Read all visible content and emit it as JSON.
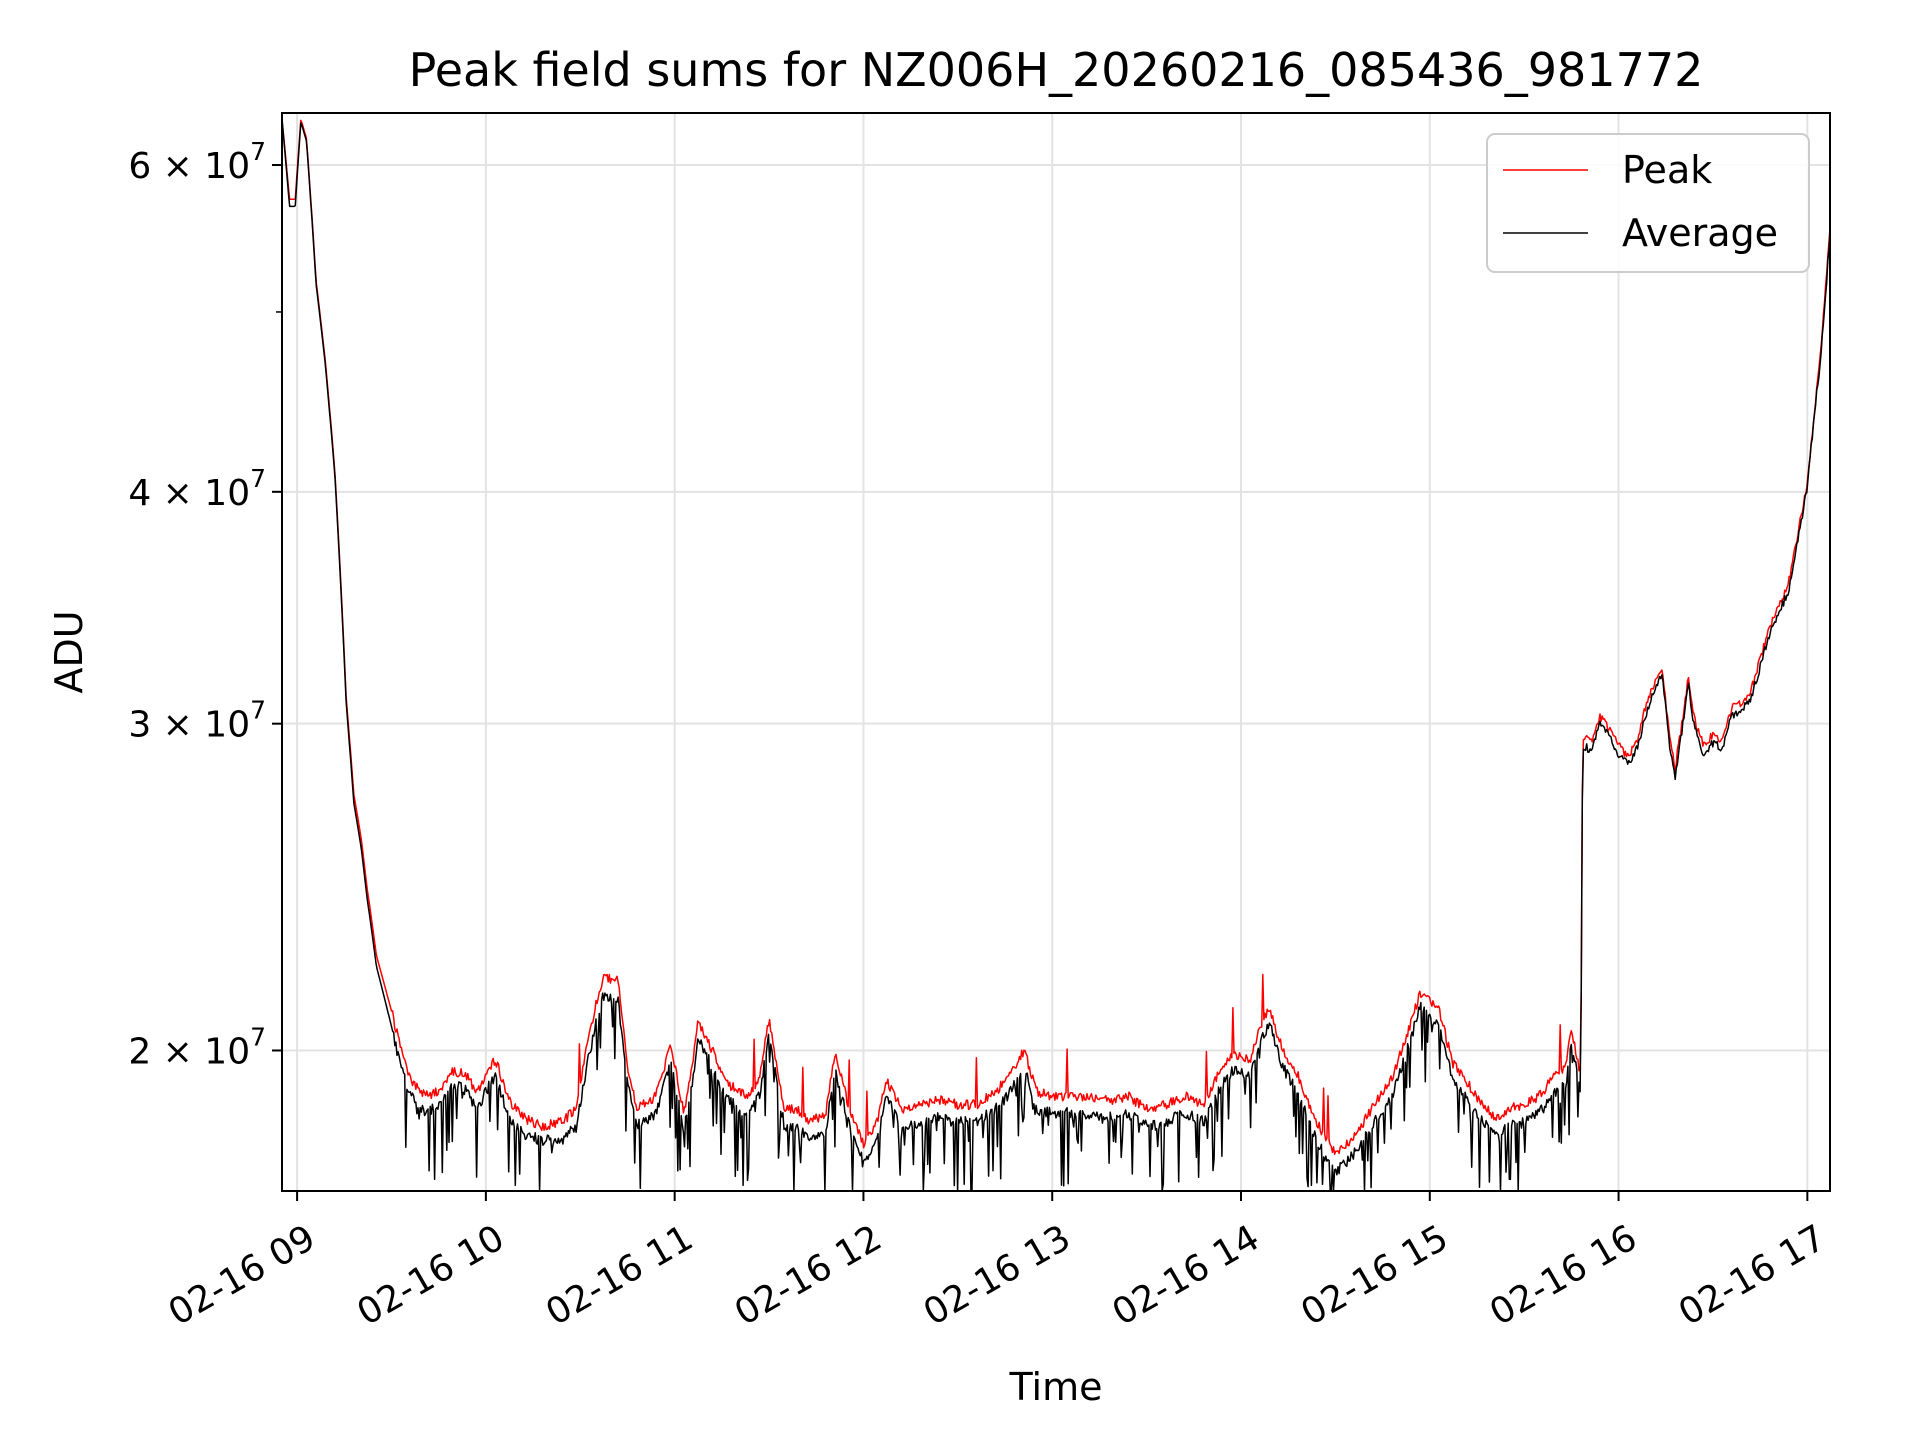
{
  "chart_data": {
    "type": "line",
    "title": "Peak field sums for NZ006H_20260216_085436_981772",
    "xlabel": "Time",
    "ylabel": "ADU",
    "yscale": "log",
    "ylim": [
      16800000,
      64000000
    ],
    "xlim_hours": [
      8.92,
      17.12
    ],
    "grid": true,
    "legend_position": "upper-right",
    "x_ticks": [
      {
        "hour": 9,
        "label": "02-16 09"
      },
      {
        "hour": 10,
        "label": "02-16 10"
      },
      {
        "hour": 11,
        "label": "02-16 11"
      },
      {
        "hour": 12,
        "label": "02-16 12"
      },
      {
        "hour": 13,
        "label": "02-16 13"
      },
      {
        "hour": 14,
        "label": "02-16 14"
      },
      {
        "hour": 15,
        "label": "02-16 15"
      },
      {
        "hour": 16,
        "label": "02-16 16"
      },
      {
        "hour": 17,
        "label": "02-16 17"
      }
    ],
    "y_ticks": [
      {
        "value": 20000000,
        "base": "2 × 10",
        "exp": "7"
      },
      {
        "value": 30000000,
        "base": "3 × 10",
        "exp": "7"
      },
      {
        "value": 40000000,
        "base": "4 × 10",
        "exp": "7"
      },
      {
        "value": 60000000,
        "base": "6 × 10",
        "exp": "7"
      }
    ],
    "y_minor_ticks": [
      50000000
    ],
    "series": [
      {
        "name": "Peak",
        "color": "#ff0000",
        "points": [
          [
            8.92,
            63500000
          ],
          [
            8.96,
            57500000
          ],
          [
            8.99,
            57500000
          ],
          [
            9.02,
            63500000
          ],
          [
            9.05,
            62000000
          ],
          [
            9.08,
            56000000
          ],
          [
            9.1,
            52000000
          ],
          [
            9.15,
            47000000
          ],
          [
            9.2,
            41000000
          ],
          [
            9.23,
            36000000
          ],
          [
            9.26,
            31000000
          ],
          [
            9.3,
            27500000
          ],
          [
            9.34,
            26000000
          ],
          [
            9.37,
            24500000
          ],
          [
            9.42,
            22500000
          ],
          [
            9.5,
            21000000
          ],
          [
            9.55,
            20000000
          ],
          [
            9.6,
            19300000
          ],
          [
            9.68,
            18900000
          ],
          [
            9.75,
            19000000
          ],
          [
            9.82,
            19500000
          ],
          [
            9.9,
            19400000
          ],
          [
            9.95,
            19000000
          ],
          [
            10.05,
            19800000
          ],
          [
            10.12,
            18800000
          ],
          [
            10.2,
            18400000
          ],
          [
            10.3,
            18200000
          ],
          [
            10.4,
            18300000
          ],
          [
            10.48,
            18600000
          ],
          [
            10.55,
            20500000
          ],
          [
            10.62,
            21900000
          ],
          [
            10.7,
            21800000
          ],
          [
            10.75,
            19600000
          ],
          [
            10.8,
            18600000
          ],
          [
            10.9,
            18900000
          ],
          [
            10.98,
            20100000
          ],
          [
            11.05,
            18500000
          ],
          [
            11.1,
            19800000
          ],
          [
            11.12,
            20700000
          ],
          [
            11.2,
            20000000
          ],
          [
            11.28,
            19200000
          ],
          [
            11.38,
            18900000
          ],
          [
            11.45,
            19300000
          ],
          [
            11.5,
            20800000
          ],
          [
            11.58,
            18600000
          ],
          [
            11.65,
            18600000
          ],
          [
            11.72,
            18300000
          ],
          [
            11.8,
            18500000
          ],
          [
            11.85,
            19900000
          ],
          [
            11.92,
            18700000
          ],
          [
            12.0,
            17800000
          ],
          [
            12.08,
            18400000
          ],
          [
            12.12,
            19300000
          ],
          [
            12.2,
            18600000
          ],
          [
            12.3,
            18700000
          ],
          [
            12.4,
            18800000
          ],
          [
            12.5,
            18700000
          ],
          [
            12.6,
            18700000
          ],
          [
            12.7,
            19000000
          ],
          [
            12.78,
            19400000
          ],
          [
            12.85,
            20000000
          ],
          [
            12.92,
            19000000
          ],
          [
            13.0,
            18900000
          ],
          [
            13.1,
            18900000
          ],
          [
            13.2,
            18900000
          ],
          [
            13.3,
            18800000
          ],
          [
            13.4,
            18900000
          ],
          [
            13.5,
            18600000
          ],
          [
            13.6,
            18700000
          ],
          [
            13.7,
            18900000
          ],
          [
            13.8,
            18700000
          ],
          [
            13.88,
            19400000
          ],
          [
            13.95,
            19900000
          ],
          [
            14.05,
            19800000
          ],
          [
            14.12,
            20800000
          ],
          [
            14.15,
            21100000
          ],
          [
            14.22,
            20000000
          ],
          [
            14.3,
            19400000
          ],
          [
            14.38,
            18500000
          ],
          [
            14.45,
            17900000
          ],
          [
            14.5,
            17600000
          ],
          [
            14.58,
            17900000
          ],
          [
            14.65,
            18300000
          ],
          [
            14.72,
            18800000
          ],
          [
            14.8,
            19300000
          ],
          [
            14.88,
            20400000
          ],
          [
            14.95,
            21500000
          ],
          [
            15.05,
            21000000
          ],
          [
            15.12,
            19700000
          ],
          [
            15.2,
            19200000
          ],
          [
            15.28,
            18700000
          ],
          [
            15.35,
            18400000
          ],
          [
            15.42,
            18600000
          ],
          [
            15.5,
            18700000
          ],
          [
            15.58,
            18900000
          ],
          [
            15.65,
            19300000
          ],
          [
            15.72,
            19600000
          ],
          [
            15.75,
            20500000
          ],
          [
            15.8,
            19400000
          ],
          [
            15.81,
            29500000
          ],
          [
            15.86,
            29300000
          ],
          [
            15.9,
            30300000
          ],
          [
            15.95,
            29800000
          ],
          [
            16.0,
            29200000
          ],
          [
            16.05,
            28800000
          ],
          [
            16.1,
            29400000
          ],
          [
            16.15,
            30800000
          ],
          [
            16.2,
            31800000
          ],
          [
            16.23,
            32200000
          ],
          [
            16.27,
            29500000
          ],
          [
            16.3,
            28400000
          ],
          [
            16.34,
            30200000
          ],
          [
            16.37,
            31800000
          ],
          [
            16.4,
            30200000
          ],
          [
            16.45,
            29200000
          ],
          [
            16.5,
            29600000
          ],
          [
            16.55,
            29400000
          ],
          [
            16.6,
            30600000
          ],
          [
            16.65,
            30800000
          ],
          [
            16.7,
            31200000
          ],
          [
            16.75,
            32500000
          ],
          [
            16.8,
            33800000
          ],
          [
            16.85,
            34700000
          ],
          [
            16.9,
            35700000
          ],
          [
            16.95,
            38000000
          ],
          [
            17.0,
            40500000
          ],
          [
            17.03,
            43500000
          ],
          [
            17.07,
            47500000
          ],
          [
            17.1,
            52000000
          ],
          [
            17.12,
            55300000
          ]
        ]
      },
      {
        "name": "Average",
        "color": "#000000",
        "points": [
          [
            8.92,
            63500000
          ],
          [
            8.96,
            57000000
          ],
          [
            8.99,
            57000000
          ],
          [
            9.02,
            63300000
          ],
          [
            9.05,
            61800000
          ],
          [
            9.08,
            55800000
          ],
          [
            9.1,
            51800000
          ],
          [
            9.15,
            46800000
          ],
          [
            9.2,
            40800000
          ],
          [
            9.23,
            35800000
          ],
          [
            9.26,
            30800000
          ],
          [
            9.3,
            27200000
          ],
          [
            9.34,
            25700000
          ],
          [
            9.37,
            24200000
          ],
          [
            9.42,
            22200000
          ],
          [
            9.5,
            20600000
          ],
          [
            9.55,
            19600000
          ],
          [
            9.6,
            18900000
          ],
          [
            9.68,
            18500000
          ],
          [
            9.75,
            18700000
          ],
          [
            9.82,
            19200000
          ],
          [
            9.9,
            19000000
          ],
          [
            9.95,
            18600000
          ],
          [
            10.05,
            19400000
          ],
          [
            10.12,
            18400000
          ],
          [
            10.2,
            18000000
          ],
          [
            10.3,
            17900000
          ],
          [
            10.4,
            17900000
          ],
          [
            10.48,
            18200000
          ],
          [
            10.55,
            20000000
          ],
          [
            10.62,
            21400000
          ],
          [
            10.7,
            21300000
          ],
          [
            10.75,
            19200000
          ],
          [
            10.8,
            18200000
          ],
          [
            10.9,
            18500000
          ],
          [
            10.98,
            19700000
          ],
          [
            11.05,
            18100000
          ],
          [
            11.1,
            19400000
          ],
          [
            11.12,
            20300000
          ],
          [
            11.2,
            19600000
          ],
          [
            11.28,
            18800000
          ],
          [
            11.38,
            18500000
          ],
          [
            11.45,
            18900000
          ],
          [
            11.5,
            20400000
          ],
          [
            11.58,
            18200000
          ],
          [
            11.65,
            18200000
          ],
          [
            11.72,
            17900000
          ],
          [
            11.8,
            18100000
          ],
          [
            11.85,
            19500000
          ],
          [
            11.92,
            18300000
          ],
          [
            12.0,
            17400000
          ],
          [
            12.08,
            18000000
          ],
          [
            12.12,
            18900000
          ],
          [
            12.2,
            18200000
          ],
          [
            12.3,
            18300000
          ],
          [
            12.4,
            18400000
          ],
          [
            12.5,
            18300000
          ],
          [
            12.6,
            18300000
          ],
          [
            12.7,
            18600000
          ],
          [
            12.78,
            19000000
          ],
          [
            12.85,
            19600000
          ],
          [
            12.92,
            18600000
          ],
          [
            13.0,
            18500000
          ],
          [
            13.1,
            18500000
          ],
          [
            13.2,
            18500000
          ],
          [
            13.3,
            18400000
          ],
          [
            13.4,
            18500000
          ],
          [
            13.5,
            18200000
          ],
          [
            13.6,
            18300000
          ],
          [
            13.7,
            18500000
          ],
          [
            13.8,
            18300000
          ],
          [
            13.88,
            19000000
          ],
          [
            13.95,
            19500000
          ],
          [
            14.05,
            19400000
          ],
          [
            14.12,
            20400000
          ],
          [
            14.15,
            20700000
          ],
          [
            14.22,
            19600000
          ],
          [
            14.3,
            19000000
          ],
          [
            14.38,
            18100000
          ],
          [
            14.45,
            17500000
          ],
          [
            14.5,
            17200000
          ],
          [
            14.58,
            17500000
          ],
          [
            14.65,
            17900000
          ],
          [
            14.72,
            18400000
          ],
          [
            14.8,
            18900000
          ],
          [
            14.88,
            20000000
          ],
          [
            14.95,
            21100000
          ],
          [
            15.05,
            20600000
          ],
          [
            15.12,
            19300000
          ],
          [
            15.2,
            18800000
          ],
          [
            15.28,
            18300000
          ],
          [
            15.35,
            18000000
          ],
          [
            15.42,
            18200000
          ],
          [
            15.5,
            18300000
          ],
          [
            15.58,
            18500000
          ],
          [
            15.65,
            18900000
          ],
          [
            15.72,
            19200000
          ],
          [
            15.75,
            20100000
          ],
          [
            15.8,
            19000000
          ],
          [
            15.81,
            29200000
          ],
          [
            15.86,
            29000000
          ],
          [
            15.9,
            30000000
          ],
          [
            15.95,
            29500000
          ],
          [
            16.0,
            28900000
          ],
          [
            16.05,
            28500000
          ],
          [
            16.1,
            29100000
          ],
          [
            16.15,
            30500000
          ],
          [
            16.2,
            31500000
          ],
          [
            16.23,
            31900000
          ],
          [
            16.27,
            29200000
          ],
          [
            16.3,
            28100000
          ],
          [
            16.34,
            29900000
          ],
          [
            16.37,
            31500000
          ],
          [
            16.4,
            29900000
          ],
          [
            16.45,
            28900000
          ],
          [
            16.5,
            29300000
          ],
          [
            16.55,
            29100000
          ],
          [
            16.6,
            30300000
          ],
          [
            16.65,
            30500000
          ],
          [
            16.7,
            30900000
          ],
          [
            16.75,
            32200000
          ],
          [
            16.8,
            33500000
          ],
          [
            16.85,
            34400000
          ],
          [
            16.9,
            35400000
          ],
          [
            16.95,
            37700000
          ],
          [
            17.0,
            40200000
          ],
          [
            17.03,
            43200000
          ],
          [
            17.07,
            47200000
          ],
          [
            17.1,
            51700000
          ],
          [
            17.12,
            55000000
          ]
        ]
      }
    ]
  }
}
